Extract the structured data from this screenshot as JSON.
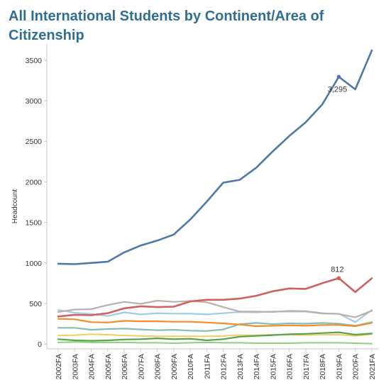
{
  "title": "All International Students by Continent/Area of Citizenship",
  "chart_data": {
    "type": "line",
    "title": "All International Students by Continent/Area of Citizenship",
    "xlabel": "",
    "ylabel": "Headcount",
    "ylim": [
      -60,
      3700
    ],
    "y_ticks": [
      0,
      500,
      1000,
      1500,
      2000,
      2500,
      3000,
      3500
    ],
    "y_tick_labels": [
      "0",
      "500",
      "1000",
      "1500",
      "2000",
      "2500",
      "3000",
      "3500"
    ],
    "grid": false,
    "categories": [
      "2002FA",
      "2003FA",
      "2004FA",
      "2005FA",
      "2006FA",
      "2007FA",
      "2008FA",
      "2009FA",
      "2010FA",
      "2011FA",
      "2012FA",
      "2013FA",
      "2014FA",
      "2015FA",
      "2016FA",
      "2017FA",
      "2018FA",
      "2019FA",
      "2020FA",
      "2021FA"
    ],
    "series": [
      {
        "color": "#4e79a7",
        "width": 2.6,
        "values": [
          990,
          985,
          1000,
          1015,
          1130,
          1215,
          1275,
          1350,
          1535,
          1755,
          1990,
          2025,
          2175,
          2375,
          2565,
          2735,
          2955,
          3295,
          3140,
          3620
        ]
      },
      {
        "color": "#d0615e",
        "width": 2.6,
        "values": [
          340,
          360,
          355,
          380,
          440,
          465,
          455,
          460,
          525,
          545,
          545,
          560,
          595,
          650,
          685,
          680,
          750,
          812,
          640,
          810
        ]
      },
      {
        "color": "#bab0ac",
        "width": 2.2,
        "values": [
          395,
          425,
          430,
          480,
          520,
          495,
          535,
          520,
          530,
          515,
          455,
          400,
          400,
          395,
          410,
          405,
          380,
          370,
          330,
          410
        ]
      },
      {
        "color": "#a0cbe8",
        "width": 2.2,
        "values": [
          420,
          385,
          370,
          345,
          390,
          365,
          380,
          375,
          375,
          365,
          380,
          395,
          390,
          400,
          400,
          400,
          375,
          375,
          270,
          420
        ]
      },
      {
        "color": "#f28e2b",
        "width": 2.2,
        "values": [
          310,
          305,
          270,
          265,
          285,
          280,
          280,
          275,
          275,
          265,
          255,
          240,
          220,
          225,
          230,
          225,
          235,
          235,
          220,
          260
        ]
      },
      {
        "color": "#86bcb6",
        "width": 2.2,
        "values": [
          200,
          200,
          175,
          185,
          190,
          180,
          170,
          175,
          165,
          160,
          180,
          245,
          260,
          245,
          255,
          250,
          260,
          250,
          225,
          270
        ]
      },
      {
        "color": "#59a14f",
        "width": 2.2,
        "values": [
          60,
          45,
          40,
          45,
          55,
          60,
          70,
          60,
          65,
          45,
          60,
          90,
          100,
          110,
          120,
          125,
          135,
          145,
          115,
          130
        ]
      },
      {
        "color": "#f1ce63",
        "width": 2.0,
        "values": [
          105,
          110,
          120,
          115,
          105,
          100,
          95,
          95,
          95,
          95,
          100,
          110,
          110,
          115,
          115,
          110,
          115,
          115,
          100,
          120
        ]
      },
      {
        "color": "#8cd17d",
        "width": 2.0,
        "values": [
          20,
          25,
          20,
          20,
          20,
          15,
          15,
          10,
          15,
          20,
          15,
          15,
          10,
          10,
          10,
          15,
          15,
          15,
          10,
          5
        ]
      }
    ],
    "annotations": [
      {
        "series_index": 0,
        "category": "2019FA",
        "text": "3,295"
      },
      {
        "series_index": 1,
        "category": "2019FA",
        "text": "812"
      }
    ]
  }
}
